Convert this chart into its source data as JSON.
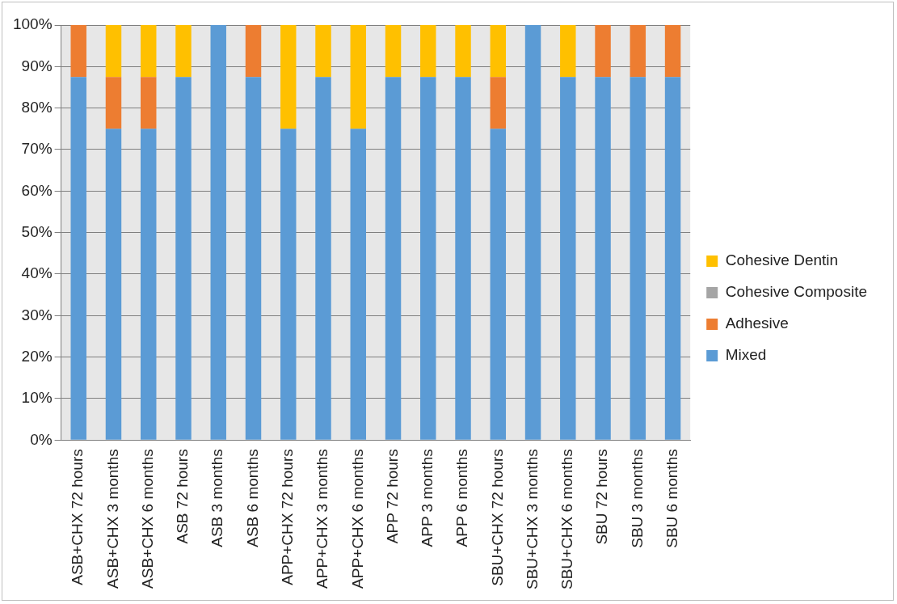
{
  "chart_data": {
    "type": "bar",
    "stacked": true,
    "categories": [
      "ASB+CHX 72 hours",
      "ASB+CHX 3 months",
      "ASB+CHX 6 months",
      "ASB 72 hours",
      "ASB 3 months",
      "ASB 6 months",
      "APP+CHX 72 hours",
      "APP+CHX 3 months",
      "APP+CHX 6 months",
      "APP 72 hours",
      "APP 3 months",
      "APP 6 months",
      "SBU+CHX 72 hours",
      "SBU+CHX 3 months",
      "SBU+CHX 6 months",
      "SBU 72 hours",
      "SBU 3 months",
      "SBU 6 months"
    ],
    "series": [
      {
        "name": "Mixed",
        "color": "#5b9bd5",
        "values": [
          87.5,
          75,
          75,
          87.5,
          100,
          87.5,
          75,
          87.5,
          75,
          87.5,
          87.5,
          87.5,
          75,
          100,
          87.5,
          87.5,
          87.5,
          87.5
        ]
      },
      {
        "name": "Adhesive",
        "color": "#ed7d31",
        "values": [
          12.5,
          12.5,
          12.5,
          0,
          0,
          12.5,
          0,
          0,
          0,
          0,
          0,
          0,
          12.5,
          0,
          0,
          12.5,
          12.5,
          12.5
        ]
      },
      {
        "name": "Cohesive Composite",
        "color": "#a5a5a5",
        "values": [
          0,
          0,
          0,
          0,
          0,
          0,
          0,
          0,
          0,
          0,
          0,
          0,
          0,
          0,
          0,
          0,
          0,
          0
        ]
      },
      {
        "name": "Cohesive Dentin",
        "color": "#ffc000",
        "values": [
          0,
          12.5,
          12.5,
          12.5,
          0,
          0,
          25,
          12.5,
          25,
          12.5,
          12.5,
          12.5,
          12.5,
          0,
          12.5,
          0,
          0,
          0
        ]
      }
    ],
    "ylim": [
      0,
      100
    ],
    "yticks": [
      {
        "value": 0,
        "label": "0%"
      },
      {
        "value": 10,
        "label": "10%"
      },
      {
        "value": 20,
        "label": "20%"
      },
      {
        "value": 30,
        "label": "30%"
      },
      {
        "value": 40,
        "label": "40%"
      },
      {
        "value": 50,
        "label": "50%"
      },
      {
        "value": 60,
        "label": "60%"
      },
      {
        "value": 70,
        "label": "70%"
      },
      {
        "value": 80,
        "label": "80%"
      },
      {
        "value": 90,
        "label": "90%"
      },
      {
        "value": 100,
        "label": "100%"
      }
    ],
    "grid": "y",
    "legend": "right"
  }
}
